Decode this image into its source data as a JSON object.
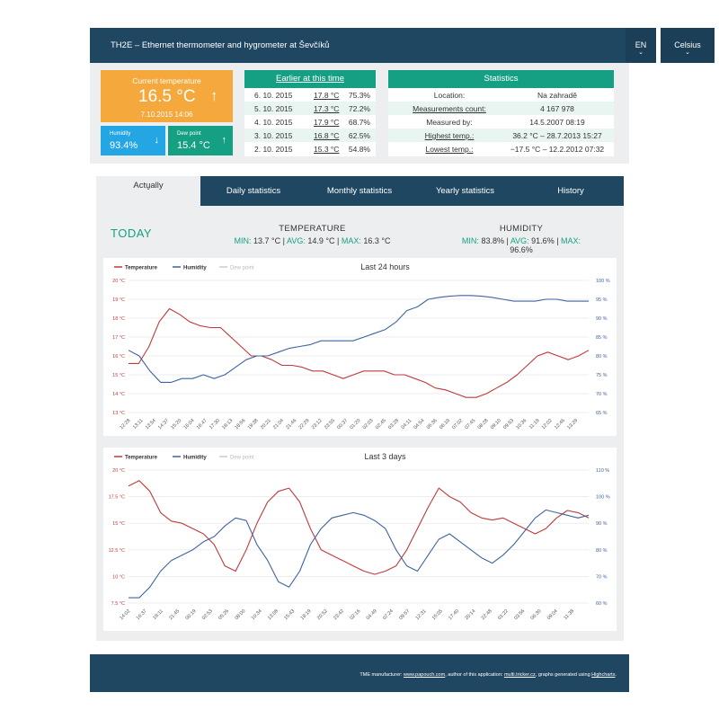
{
  "header": {
    "title": "TH2E – Ethernet thermometer and hygrometer at Ševčíků",
    "language": "EN",
    "unit": "Celsius"
  },
  "current": {
    "label": "Current temperature",
    "value": "16.5 °C",
    "arrow": "↑",
    "time": "7.10.2015 14:06",
    "humidity_label": "Humidity",
    "humidity_value": "93.4%",
    "humidity_arrow": "↓",
    "dew_label": "Dew point",
    "dew_value": "15.4 °C",
    "dew_arrow": "↑"
  },
  "earlier": {
    "title": "Earlier at this time",
    "rows": [
      {
        "date": "6. 10. 2015",
        "temp": "17.8 °C",
        "hum": "75.3%"
      },
      {
        "date": "5. 10. 2015",
        "temp": "17.3 °C",
        "hum": "72.2%"
      },
      {
        "date": "4. 10. 2015",
        "temp": "17.9 °C",
        "hum": "68.7%"
      },
      {
        "date": "3. 10. 2015",
        "temp": "16.8 °C",
        "hum": "62.5%"
      },
      {
        "date": "2. 10. 2015",
        "temp": "15.3 °C",
        "hum": "54.8%"
      }
    ]
  },
  "statistics": {
    "title": "Statistics",
    "rows": [
      {
        "key": "Location:",
        "value": "Na zahradě"
      },
      {
        "key": "Measurements count:",
        "value": "4 167 978"
      },
      {
        "key": "Measured by:",
        "value": "14.5.2007 08:19"
      },
      {
        "key": "Highest temp.:",
        "value": "36.2 °C – 28.7.2013 15:27"
      },
      {
        "key": "Lowest temp.:",
        "value": "−17.5 °C – 12.2.2012 07:32"
      }
    ]
  },
  "tabs": [
    {
      "label": "Actually"
    },
    {
      "label": "Daily statistics"
    },
    {
      "label": "Monthly statistics"
    },
    {
      "label": "Yearly statistics"
    },
    {
      "label": "History"
    }
  ],
  "today": {
    "label": "TODAY",
    "temperature": {
      "heading": "TEMPERATURE",
      "min_label": "MIN:",
      "min": "13.7 °C",
      "avg_label": "AVG:",
      "avg": "14.9 °C",
      "max_label": "MAX:",
      "max": "16.3 °C"
    },
    "humidity": {
      "heading": "HUMIDITY",
      "min_label": "MIN:",
      "min": "83.8%",
      "avg_label": "AVG:",
      "avg": "91.6%",
      "max_label": "MAX:",
      "max": "96.6%"
    }
  },
  "colors": {
    "temperature": "#c0393b",
    "humidity": "#3f63a0",
    "dew": "#cccccc",
    "accent": "#16a083",
    "header": "#1f4761"
  },
  "chart_data": [
    {
      "type": "line",
      "title": "Last 24 hours",
      "legend": [
        "Temperature",
        "Humidity",
        "Dew point"
      ],
      "legend_position": "top-left",
      "grid": true,
      "y_left": {
        "ticks": [
          "20 °C",
          "19 °C",
          "18 °C",
          "17 °C",
          "16 °C",
          "15 °C",
          "14 °C",
          "13 °C"
        ],
        "range": [
          13,
          20
        ]
      },
      "y_right": {
        "ticks": [
          "100 %",
          "95 %",
          "90 %",
          "85 %",
          "80 %",
          "75 %",
          "70 %",
          "65 %"
        ],
        "range": [
          65,
          100
        ]
      },
      "x_ticks": [
        "12:28",
        "13:11",
        "13:54",
        "14:37",
        "15:20",
        "16:04",
        "16:47",
        "17:30",
        "18:13",
        "18:56",
        "19:38",
        "20:21",
        "21:04",
        "21:46",
        "22:29",
        "23:12",
        "23:55",
        "00:37",
        "01:20",
        "02:03",
        "02:45",
        "03:28",
        "04:11",
        "04:54",
        "05:36",
        "06:19",
        "07:02",
        "07:45",
        "08:28",
        "09:10",
        "09:53",
        "10:36",
        "11:19",
        "12:02",
        "12:46",
        "13:29"
      ],
      "series": [
        {
          "name": "Temperature",
          "axis": "left",
          "values": [
            15.6,
            15.6,
            16.5,
            17.8,
            18.5,
            18.2,
            17.8,
            17.6,
            17.5,
            17.5,
            17.0,
            16.5,
            16.0,
            16.0,
            15.8,
            15.5,
            15.5,
            15.4,
            15.2,
            15.2,
            15.0,
            14.8,
            15.0,
            15.2,
            15.2,
            15.2,
            15.0,
            15.0,
            14.8,
            14.6,
            14.3,
            14.2,
            14.0,
            13.8,
            13.8,
            14.0,
            14.3,
            14.6,
            15.0,
            15.5,
            16.0,
            16.2,
            16.0,
            15.8,
            16.0,
            16.3
          ]
        },
        {
          "name": "Humidity",
          "axis": "left_percent",
          "values": [
            81.5,
            80,
            76,
            73,
            73,
            74,
            74,
            75,
            74,
            75,
            77,
            79,
            80,
            80,
            81,
            82,
            82.5,
            83,
            84,
            84,
            84,
            84,
            85,
            86,
            87,
            89,
            92,
            93,
            95,
            95.5,
            95.8,
            96,
            96,
            95.8,
            95.5,
            95,
            94.5,
            94.5,
            94.5,
            95,
            95,
            94.5,
            94.5,
            94.5
          ]
        },
        {
          "name": "Dew point",
          "axis": "left",
          "values": []
        }
      ]
    },
    {
      "type": "line",
      "title": "Last 3 days",
      "legend": [
        "Temperature",
        "Humidity",
        "Dew point"
      ],
      "legend_position": "top-left",
      "grid": true,
      "y_left": {
        "ticks": [
          "20 °C",
          "17.5 °C",
          "15 °C",
          "12.5 °C",
          "10 °C",
          "7.5 °C"
        ],
        "range": [
          7.5,
          20
        ]
      },
      "y_right": {
        "ticks": [
          "110 %",
          "100 %",
          "90 %",
          "80 %",
          "70 %",
          "60 %"
        ],
        "range": [
          60,
          110
        ]
      },
      "x_ticks": [
        "14:02",
        "16:37",
        "19:11",
        "21:45",
        "00:19",
        "02:53",
        "05:26",
        "08:00",
        "10:34",
        "13:08",
        "15:43",
        "18:19",
        "20:52",
        "23:42",
        "02:16",
        "04:49",
        "07:24",
        "09:57",
        "12:31",
        "15:05",
        "17:40",
        "20:14",
        "22:48",
        "01:22",
        "03:56",
        "06:30",
        "09:04",
        "11:38"
      ],
      "series": [
        {
          "name": "Temperature",
          "axis": "left",
          "values": [
            18.5,
            19.0,
            18.0,
            16.0,
            15.2,
            15.0,
            14.5,
            14.0,
            13.0,
            11.0,
            10.5,
            12.5,
            15.0,
            17.0,
            18.0,
            18.3,
            17.0,
            14.5,
            12.5,
            12.0,
            11.5,
            11.0,
            10.5,
            10.2,
            10.5,
            11.0,
            12.5,
            14.5,
            16.5,
            18.3,
            17.5,
            17.0,
            16.0,
            15.5,
            15.3,
            15.5,
            15.0,
            14.5,
            14.0,
            14.5,
            15.5,
            16.2,
            16.0,
            15.5
          ]
        },
        {
          "name": "Humidity",
          "axis": "right",
          "values": [
            62,
            62,
            66,
            72,
            76,
            78,
            80,
            83,
            85,
            89,
            92,
            91,
            82,
            76,
            68,
            66,
            72,
            82,
            88,
            92,
            93,
            94,
            93,
            91,
            88,
            80,
            74,
            72,
            78,
            84,
            86,
            83,
            80,
            77,
            75,
            78,
            82,
            87,
            92,
            95,
            94,
            93,
            92,
            93
          ]
        },
        {
          "name": "Dew point",
          "axis": "left",
          "values": []
        }
      ]
    }
  ],
  "footer": {
    "text1": "TME manufacturer: ",
    "link1": "www.papouch.com",
    "text2": ", author of this application: ",
    "link2": "multi.tricker.cz",
    "text3": ", graphs generated using ",
    "link3": "Highcharts",
    "text4": "."
  }
}
